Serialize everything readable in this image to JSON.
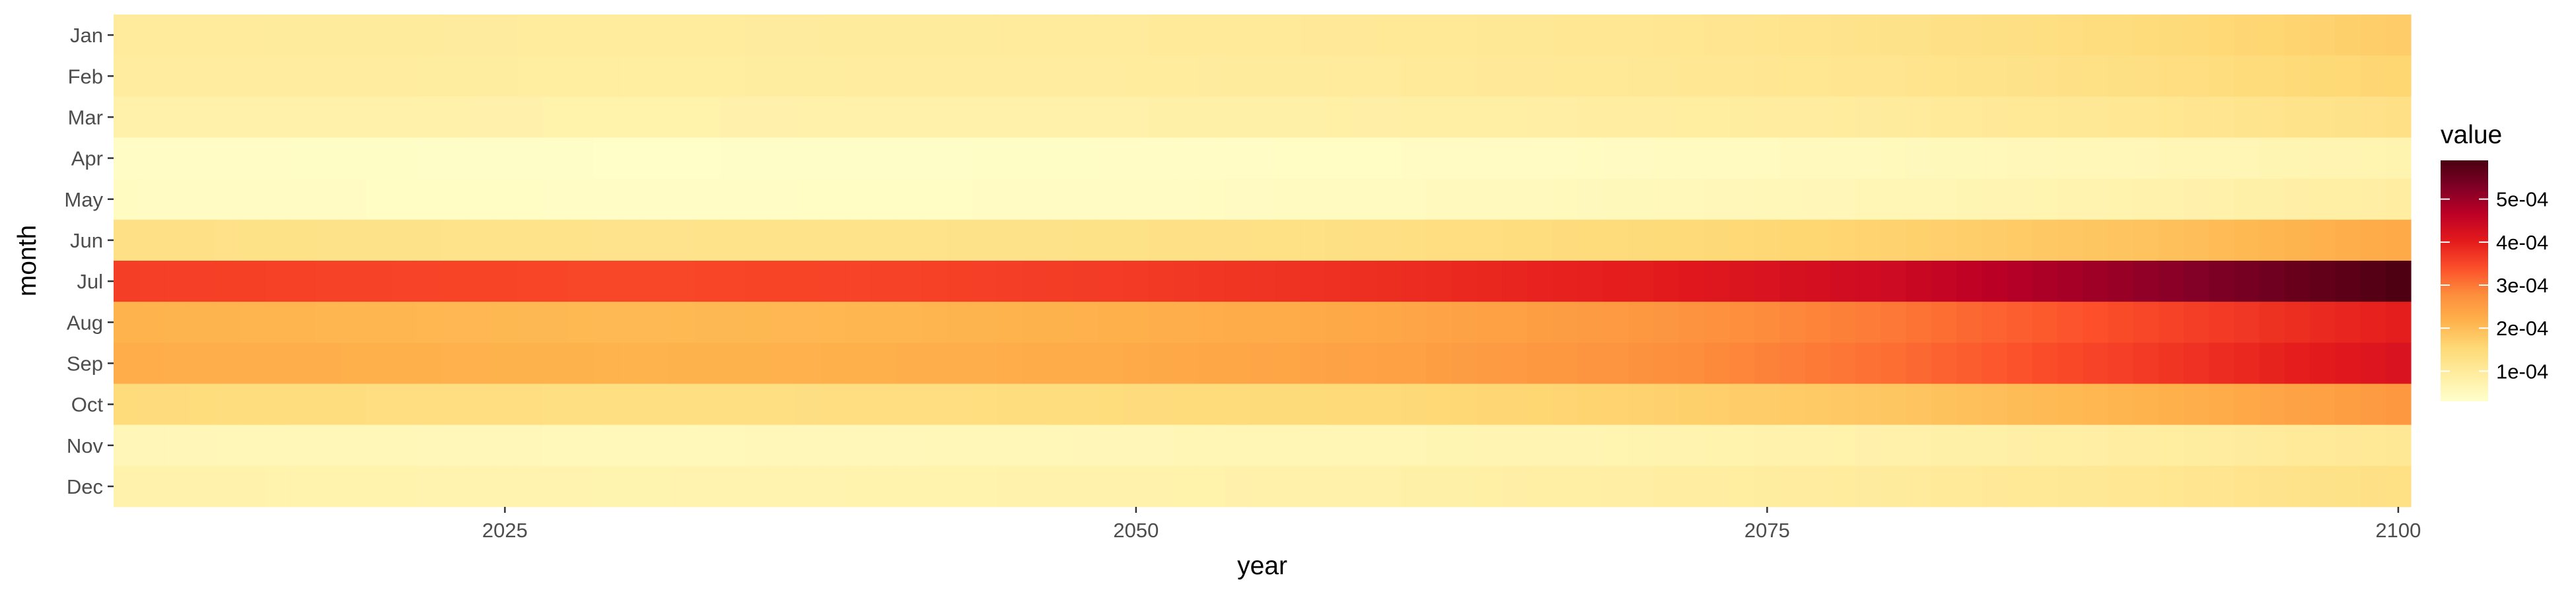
{
  "chart_data": {
    "type": "heatmap",
    "title": "",
    "xlabel": "year",
    "ylabel": "month",
    "x_start": 2010,
    "x_end": 2100,
    "x_ticks": [
      2025,
      2050,
      2075,
      2100
    ],
    "x_tick_labels": [
      "2025",
      "2050",
      "2075",
      "2100"
    ],
    "months": [
      "Jan",
      "Feb",
      "Mar",
      "Apr",
      "May",
      "Jun",
      "Jul",
      "Aug",
      "Sep",
      "Oct",
      "Nov",
      "Dec"
    ],
    "colorbar": {
      "title": "value",
      "min": 3e-05,
      "max": 0.00059,
      "ticks": [
        0.0001,
        0.0002,
        0.0003,
        0.0004,
        0.0005
      ],
      "tick_labels": [
        "1e-04",
        "2e-04",
        "3e-04",
        "4e-04",
        "5e-04"
      ],
      "palette": [
        "#ffffcc",
        "#ffeda0",
        "#fed976",
        "#feb24c",
        "#fd8d3c",
        "#fc4e2a",
        "#e31a1c",
        "#bd0026",
        "#800026",
        "#4a0010"
      ]
    },
    "grid": false,
    "legend_position": "right",
    "series": [
      {
        "month": "Jan",
        "values_by_decade": [
          0.0001,
          9.8e-05,
          9.6e-05,
          9.8e-05,
          0.0001,
          0.000105,
          0.000112,
          0.000125,
          0.000145,
          0.000175
        ]
      },
      {
        "month": "Feb",
        "values_by_decade": [
          9.5e-05,
          9.4e-05,
          9.2e-05,
          9.4e-05,
          9.6e-05,
          0.0001,
          0.000108,
          0.000118,
          0.000135,
          0.00016
        ]
      },
      {
        "month": "Mar",
        "values_by_decade": [
          8e-05,
          7.8e-05,
          7.6e-05,
          7.8e-05,
          8e-05,
          8.4e-05,
          9e-05,
          9.8e-05,
          0.000112,
          0.00013
        ]
      },
      {
        "month": "Apr",
        "values_by_decade": [
          4e-05,
          3.8e-05,
          3.6e-05,
          3.7e-05,
          3.9e-05,
          4.2e-05,
          4.6e-05,
          5.2e-05,
          6e-05,
          7e-05
        ]
      },
      {
        "month": "May",
        "values_by_decade": [
          4.5e-05,
          4.2e-05,
          4e-05,
          4.1e-05,
          4.4e-05,
          4.8e-05,
          5.4e-05,
          6.2e-05,
          7.4e-05,
          9e-05
        ]
      },
      {
        "month": "Jun",
        "values_by_decade": [
          0.00013,
          0.000126,
          0.000122,
          0.000124,
          0.000128,
          0.000135,
          0.000148,
          0.000165,
          0.00019,
          0.00023
        ]
      },
      {
        "month": "Jul",
        "values_by_decade": [
          0.00036,
          0.000355,
          0.00035,
          0.000355,
          0.000365,
          0.00038,
          0.0004,
          0.00044,
          0.00051,
          0.000585
        ]
      },
      {
        "month": "Aug",
        "values_by_decade": [
          0.000215,
          0.00021,
          0.000205,
          0.00021,
          0.00022,
          0.000235,
          0.00026,
          0.0003,
          0.00035,
          0.0004
        ]
      },
      {
        "month": "Sep",
        "values_by_decade": [
          0.000225,
          0.00022,
          0.000215,
          0.00022,
          0.00023,
          0.000245,
          0.00027,
          0.00031,
          0.000365,
          0.00042
        ]
      },
      {
        "month": "Oct",
        "values_by_decade": [
          0.000145,
          0.00014,
          0.000136,
          0.000138,
          0.000144,
          0.000152,
          0.000165,
          0.000185,
          0.000215,
          0.00026
        ]
      },
      {
        "month": "Nov",
        "values_by_decade": [
          6e-05,
          5.8e-05,
          5.5e-05,
          5.7e-05,
          6e-05,
          6.4e-05,
          7e-05,
          7.8e-05,
          9e-05,
          0.000108
        ]
      },
      {
        "month": "Dec",
        "values_by_decade": [
          7.5e-05,
          7.2e-05,
          7e-05,
          7.2e-05,
          7.5e-05,
          8e-05,
          8.8e-05,
          9.8e-05,
          0.000112,
          0.000132
        ]
      }
    ]
  }
}
